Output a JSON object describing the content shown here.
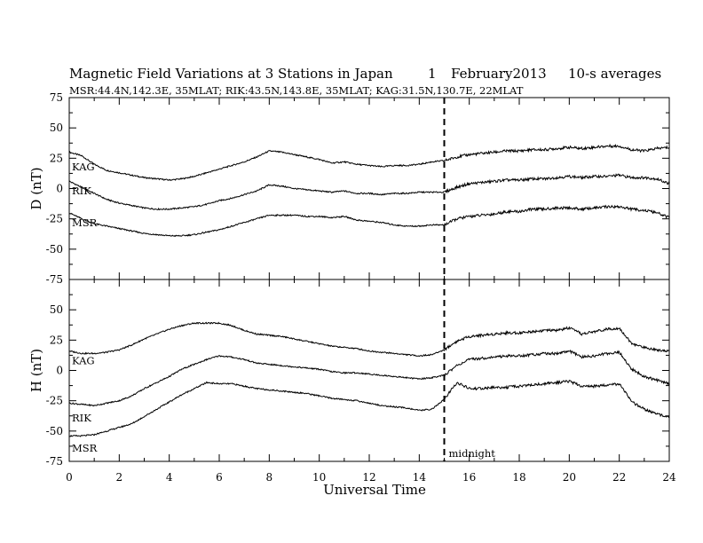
{
  "header": {
    "title": "Magnetic Field Variations at 3 Stations in Japan",
    "day": "1",
    "month_year": "February2013",
    "averaging": "10-s averages",
    "stations": "MSR:44.4N,142.3E, 35MLAT;  RIK:43.5N,143.8E, 35MLAT;  KAG:31.5N,130.7E, 22MLAT"
  },
  "chart_data": {
    "type": "line",
    "xlabel": "Universal Time",
    "xlim": [
      0,
      24
    ],
    "x_ticks": [
      "0",
      "2",
      "4",
      "6",
      "8",
      "10",
      "12",
      "14",
      "16",
      "18",
      "20",
      "22",
      "24"
    ],
    "marker": {
      "x": 15,
      "label": "midnight",
      "style": "dashed"
    },
    "x": [
      0,
      0.5,
      1,
      1.5,
      2,
      2.5,
      3,
      3.5,
      4,
      4.5,
      5,
      5.5,
      6,
      6.5,
      7,
      7.5,
      8,
      8.5,
      9,
      9.5,
      10,
      10.5,
      11,
      11.5,
      12,
      12.5,
      13,
      13.5,
      14,
      14.5,
      15,
      15.5,
      16,
      16.5,
      17,
      17.5,
      18,
      18.5,
      19,
      19.5,
      20,
      20.5,
      21,
      21.5,
      22,
      22.5,
      23,
      23.5,
      24
    ],
    "panels": [
      {
        "ylabel": "D (nT)",
        "ylim": [
          -75,
          75
        ],
        "y_ticks": [
          "75",
          "50",
          "25",
          "0",
          "-25",
          "-50",
          "-75"
        ],
        "series": [
          {
            "name": "KAG",
            "values": [
              30,
              27,
              20,
              15,
              13,
              11,
              9,
              8,
              7,
              8,
              10,
              13,
              16,
              19,
              22,
              26,
              31,
              30,
              28,
              26,
              24,
              21,
              22,
              20,
              19,
              18,
              19,
              19,
              20,
              22,
              23,
              26,
              28,
              29,
              30,
              31,
              31,
              32,
              32,
              33,
              34,
              33,
              34,
              35,
              35,
              32,
              31,
              33,
              34
            ]
          },
          {
            "name": "RIK",
            "values": [
              6,
              1,
              -4,
              -9,
              -12,
              -14,
              -16,
              -17,
              -17,
              -16,
              -15,
              -13,
              -10,
              -8,
              -5,
              -2,
              3,
              2,
              0,
              -1,
              -2,
              -3,
              -2,
              -4,
              -4,
              -5,
              -4,
              -4,
              -3,
              -3,
              -3,
              1,
              4,
              5,
              6,
              7,
              7,
              8,
              8,
              9,
              10,
              9,
              10,
              10,
              11,
              9,
              9,
              8,
              4
            ]
          },
          {
            "name": "MSR",
            "values": [
              -20,
              -25,
              -29,
              -31,
              -33,
              -35,
              -37,
              -38,
              -39,
              -39,
              -38,
              -36,
              -34,
              -31,
              -28,
              -25,
              -22,
              -22,
              -22,
              -23,
              -23,
              -24,
              -23,
              -26,
              -27,
              -28,
              -30,
              -31,
              -31,
              -30,
              -30,
              -25,
              -23,
              -22,
              -21,
              -19,
              -19,
              -17,
              -17,
              -16,
              -16,
              -17,
              -16,
              -15,
              -15,
              -17,
              -18,
              -20,
              -24
            ]
          }
        ]
      },
      {
        "ylabel": "H (nT)",
        "ylim": [
          -75,
          75
        ],
        "y_ticks": [
          "75",
          "50",
          "25",
          "0",
          "-25",
          "-50",
          "-75"
        ],
        "series": [
          {
            "name": "KAG",
            "values": [
              16,
              14,
              14,
              15,
              17,
              21,
              26,
              30,
              34,
              37,
              39,
              39,
              39,
              37,
              33,
              30,
              29,
              28,
              26,
              24,
              22,
              20,
              19,
              18,
              16,
              15,
              14,
              13,
              12,
              13,
              17,
              24,
              28,
              29,
              30,
              31,
              31,
              32,
              33,
              33,
              35,
              30,
              32,
              34,
              35,
              22,
              19,
              17,
              16
            ]
          },
          {
            "name": "RIK",
            "values": [
              -27,
              -28,
              -29,
              -27,
              -25,
              -21,
              -15,
              -10,
              -5,
              1,
              5,
              9,
              12,
              11,
              9,
              6,
              5,
              4,
              3,
              2,
              1,
              -1,
              -2,
              -2,
              -3,
              -4,
              -5,
              -6,
              -7,
              -6,
              -4,
              4,
              9,
              10,
              11,
              12,
              12,
              13,
              14,
              14,
              16,
              11,
              12,
              14,
              15,
              1,
              -5,
              -8,
              -11
            ]
          },
          {
            "name": "MSR",
            "values": [
              -54,
              -54,
              -53,
              -50,
              -47,
              -44,
              -38,
              -32,
              -26,
              -20,
              -15,
              -10,
              -11,
              -11,
              -13,
              -15,
              -16,
              -17,
              -18,
              -19,
              -21,
              -23,
              -24,
              -25,
              -27,
              -29,
              -30,
              -31,
              -33,
              -32,
              -24,
              -10,
              -15,
              -15,
              -14,
              -14,
              -13,
              -12,
              -11,
              -10,
              -9,
              -13,
              -13,
              -12,
              -11,
              -26,
              -32,
              -36,
              -38
            ]
          }
        ]
      }
    ]
  }
}
